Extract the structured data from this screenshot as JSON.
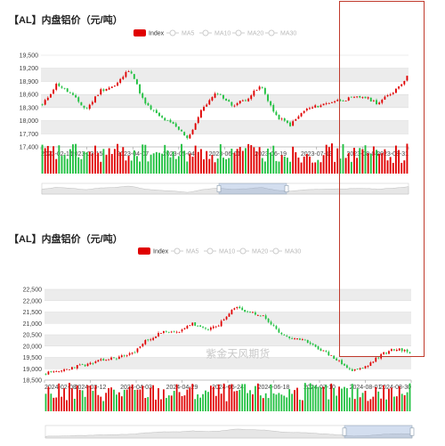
{
  "chart_data": [
    {
      "type": "candlestick",
      "title": "【AL】内盘铝价（元/吨）",
      "legend": {
        "placement": "top-center",
        "items": [
          "Index",
          "MA5",
          "MA10",
          "MA20",
          "MA30"
        ],
        "active": "Index"
      },
      "colors": {
        "up": "#e00000",
        "down": "#20c040",
        "legend_active": "#e00000",
        "legend_inactive": "#cccccc"
      },
      "ylim": [
        17400,
        19500
      ],
      "yticks": [
        17400,
        17700,
        18000,
        18300,
        18600,
        18900,
        19200,
        19500
      ],
      "ytick_labels": [
        "17,400",
        "17,700",
        "18,000",
        "18,300",
        "18,600",
        "18,900",
        "19,200",
        "19,500"
      ],
      "xtick_labels": [
        "2023-02-16",
        "2023-03-15",
        "2023-04-07",
        "2023-05-04",
        "2023-06-01",
        "2023-06-19",
        "2023-07-13",
        "2023-08-04",
        "2023-08-31"
      ],
      "watermark": "",
      "anchors": [
        18350,
        18850,
        18600,
        18250,
        18700,
        18800,
        19200,
        18400,
        18100,
        17900,
        17600,
        18300,
        18650,
        18350,
        18500,
        18800,
        18100,
        17900,
        18250,
        18350,
        18450,
        18500,
        18550,
        18400,
        18650,
        19000
      ]
    },
    {
      "type": "candlestick",
      "title": "【AL】内盘铝价（元/吨）",
      "legend": {
        "placement": "top-center",
        "items": [
          "Index",
          "MA5",
          "MA10",
          "MA20",
          "MA30"
        ],
        "active": "Index"
      },
      "colors": {
        "up": "#e00000",
        "down": "#20c040",
        "legend_active": "#e00000",
        "legend_inactive": "#cccccc"
      },
      "ylim": [
        18500,
        22500
      ],
      "yticks": [
        18500,
        19000,
        19500,
        20000,
        20500,
        21000,
        21500,
        22000,
        22500
      ],
      "ytick_labels": [
        "18,500",
        "19,000",
        "19,500",
        "20,000",
        "20,500",
        "21,000",
        "21,500",
        "22,000",
        "22,500"
      ],
      "xtick_labels": [
        "2024-02-08",
        "2024-03-12",
        "2024-04-03",
        "2024-04-29",
        "2024-05-24",
        "2024-06-18",
        "2024-07-10",
        "2024-08-01",
        "2024-08-30"
      ],
      "watermark": "紫金天风期货",
      "anchors": [
        18800,
        18900,
        19100,
        19200,
        19400,
        19500,
        19700,
        20300,
        20600,
        20600,
        21000,
        20700,
        21000,
        21700,
        21500,
        21300,
        20600,
        20300,
        20200,
        19800,
        19400,
        18900,
        19100,
        19600,
        19900,
        19700
      ]
    }
  ]
}
